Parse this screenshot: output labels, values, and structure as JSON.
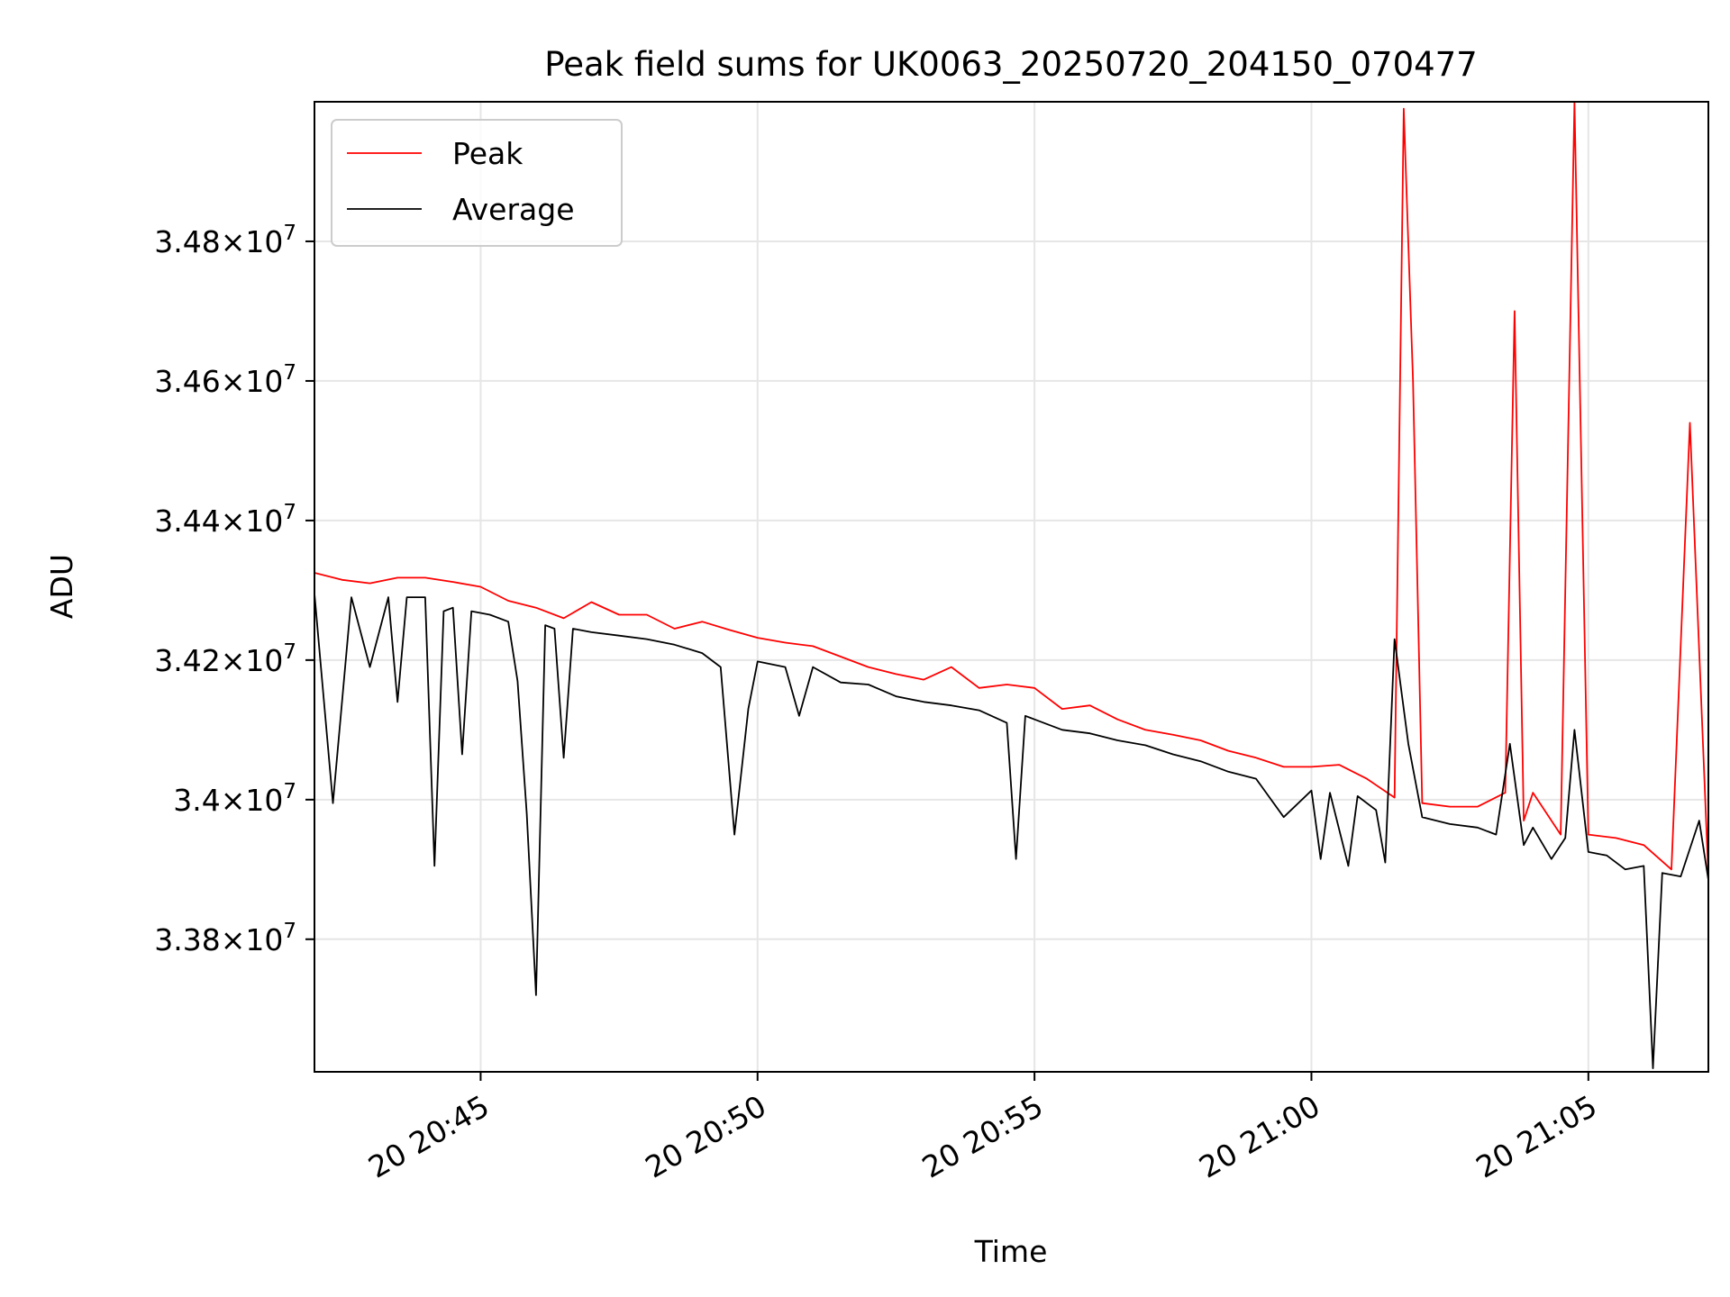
{
  "chart_data": {
    "type": "line",
    "title": "Peak field sums for UK0063_20250720_204150_070477",
    "xlabel": "Time",
    "ylabel": "ADU",
    "xlim": [
      "2025-07-20T20:42:00",
      "2025-07-20T21:07:10"
    ],
    "ylim": [
      33610000,
      35000000
    ],
    "x_ticks": [
      {
        "value": "2025-07-20T20:45:00",
        "label": "20 20:45"
      },
      {
        "value": "2025-07-20T20:50:00",
        "label": "20 20:50"
      },
      {
        "value": "2025-07-20T20:55:00",
        "label": "20 20:55"
      },
      {
        "value": "2025-07-20T21:00:00",
        "label": "20 21:00"
      },
      {
        "value": "2025-07-20T21:05:00",
        "label": "20 21:05"
      }
    ],
    "y_ticks": [
      {
        "value": 33800000,
        "label": "3.38",
        "exponent": "7"
      },
      {
        "value": 34000000,
        "label": "3.4",
        "exponent": "7"
      },
      {
        "value": 34200000,
        "label": "3.42",
        "exponent": "7"
      },
      {
        "value": 34400000,
        "label": "3.44",
        "exponent": "7"
      },
      {
        "value": 34600000,
        "label": "3.46",
        "exponent": "7"
      },
      {
        "value": 34800000,
        "label": "3.48",
        "exponent": "7"
      }
    ],
    "grid": true,
    "legend_position": "top-left",
    "series": [
      {
        "name": "Peak",
        "color": "#ff0000",
        "points": [
          [
            "2025-07-20T20:42:00",
            34325000
          ],
          [
            "2025-07-20T20:42:30",
            34315000
          ],
          [
            "2025-07-20T20:43:00",
            34310000
          ],
          [
            "2025-07-20T20:43:30",
            34318000
          ],
          [
            "2025-07-20T20:44:00",
            34318000
          ],
          [
            "2025-07-20T20:44:30",
            34312000
          ],
          [
            "2025-07-20T20:45:00",
            34305000
          ],
          [
            "2025-07-20T20:45:30",
            34285000
          ],
          [
            "2025-07-20T20:46:00",
            34275000
          ],
          [
            "2025-07-20T20:46:30",
            34260000
          ],
          [
            "2025-07-20T20:47:00",
            34283000
          ],
          [
            "2025-07-20T20:47:30",
            34265000
          ],
          [
            "2025-07-20T20:48:00",
            34265000
          ],
          [
            "2025-07-20T20:48:30",
            34245000
          ],
          [
            "2025-07-20T20:49:00",
            34255000
          ],
          [
            "2025-07-20T20:49:30",
            34243000
          ],
          [
            "2025-07-20T20:50:00",
            34232000
          ],
          [
            "2025-07-20T20:50:30",
            34225000
          ],
          [
            "2025-07-20T20:51:00",
            34220000
          ],
          [
            "2025-07-20T20:51:30",
            34205000
          ],
          [
            "2025-07-20T20:52:00",
            34190000
          ],
          [
            "2025-07-20T20:52:30",
            34180000
          ],
          [
            "2025-07-20T20:53:00",
            34172000
          ],
          [
            "2025-07-20T20:53:30",
            34190000
          ],
          [
            "2025-07-20T20:54:00",
            34160000
          ],
          [
            "2025-07-20T20:54:30",
            34165000
          ],
          [
            "2025-07-20T20:55:00",
            34160000
          ],
          [
            "2025-07-20T20:55:30",
            34130000
          ],
          [
            "2025-07-20T20:56:00",
            34135000
          ],
          [
            "2025-07-20T20:56:30",
            34115000
          ],
          [
            "2025-07-20T20:57:00",
            34100000
          ],
          [
            "2025-07-20T20:57:30",
            34093000
          ],
          [
            "2025-07-20T20:58:00",
            34085000
          ],
          [
            "2025-07-20T20:58:30",
            34070000
          ],
          [
            "2025-07-20T20:59:00",
            34060000
          ],
          [
            "2025-07-20T20:59:30",
            34047000
          ],
          [
            "2025-07-20T21:00:00",
            34047000
          ],
          [
            "2025-07-20T21:00:30",
            34050000
          ],
          [
            "2025-07-20T21:01:00",
            34030000
          ],
          [
            "2025-07-20T21:01:30",
            34003000
          ],
          [
            "2025-07-20T21:01:40",
            34990000
          ],
          [
            "2025-07-20T21:01:50",
            34600000
          ],
          [
            "2025-07-20T21:02:00",
            33995000
          ],
          [
            "2025-07-20T21:02:30",
            33990000
          ],
          [
            "2025-07-20T21:03:00",
            33990000
          ],
          [
            "2025-07-20T21:03:30",
            34010000
          ],
          [
            "2025-07-20T21:03:40",
            34700000
          ],
          [
            "2025-07-20T21:03:50",
            33970000
          ],
          [
            "2025-07-20T21:04:00",
            34010000
          ],
          [
            "2025-07-20T21:04:30",
            33950000
          ],
          [
            "2025-07-20T21:04:45",
            35000000
          ],
          [
            "2025-07-20T21:05:00",
            33950000
          ],
          [
            "2025-07-20T21:05:30",
            33945000
          ],
          [
            "2025-07-20T21:06:00",
            33935000
          ],
          [
            "2025-07-20T21:06:30",
            33900000
          ],
          [
            "2025-07-20T21:06:50",
            34540000
          ],
          [
            "2025-07-20T21:07:10",
            33890000
          ]
        ]
      },
      {
        "name": "Average",
        "color": "#000000",
        "points": [
          [
            "2025-07-20T20:42:00",
            34295000
          ],
          [
            "2025-07-20T20:42:20",
            33995000
          ],
          [
            "2025-07-20T20:42:40",
            34290000
          ],
          [
            "2025-07-20T20:43:00",
            34190000
          ],
          [
            "2025-07-20T20:43:20",
            34290000
          ],
          [
            "2025-07-20T20:43:30",
            34140000
          ],
          [
            "2025-07-20T20:43:40",
            34290000
          ],
          [
            "2025-07-20T20:44:00",
            34290000
          ],
          [
            "2025-07-20T20:44:10",
            33905000
          ],
          [
            "2025-07-20T20:44:20",
            34270000
          ],
          [
            "2025-07-20T20:44:30",
            34275000
          ],
          [
            "2025-07-20T20:44:40",
            34065000
          ],
          [
            "2025-07-20T20:44:50",
            34270000
          ],
          [
            "2025-07-20T20:45:10",
            34265000
          ],
          [
            "2025-07-20T20:45:30",
            34255000
          ],
          [
            "2025-07-20T20:45:40",
            34170000
          ],
          [
            "2025-07-20T20:45:50",
            33980000
          ],
          [
            "2025-07-20T20:46:00",
            33720000
          ],
          [
            "2025-07-20T20:46:10",
            34250000
          ],
          [
            "2025-07-20T20:46:20",
            34245000
          ],
          [
            "2025-07-20T20:46:30",
            34060000
          ],
          [
            "2025-07-20T20:46:40",
            34245000
          ],
          [
            "2025-07-20T20:47:00",
            34240000
          ],
          [
            "2025-07-20T20:47:30",
            34235000
          ],
          [
            "2025-07-20T20:48:00",
            34230000
          ],
          [
            "2025-07-20T20:48:30",
            34222000
          ],
          [
            "2025-07-20T20:49:00",
            34210000
          ],
          [
            "2025-07-20T20:49:20",
            34190000
          ],
          [
            "2025-07-20T20:49:35",
            33950000
          ],
          [
            "2025-07-20T20:49:50",
            34130000
          ],
          [
            "2025-07-20T20:50:00",
            34198000
          ],
          [
            "2025-07-20T20:50:30",
            34190000
          ],
          [
            "2025-07-20T20:50:45",
            34120000
          ],
          [
            "2025-07-20T20:51:00",
            34190000
          ],
          [
            "2025-07-20T20:51:30",
            34168000
          ],
          [
            "2025-07-20T20:52:00",
            34165000
          ],
          [
            "2025-07-20T20:52:30",
            34148000
          ],
          [
            "2025-07-20T20:53:00",
            34140000
          ],
          [
            "2025-07-20T20:53:30",
            34135000
          ],
          [
            "2025-07-20T20:54:00",
            34128000
          ],
          [
            "2025-07-20T20:54:30",
            34110000
          ],
          [
            "2025-07-20T20:54:40",
            33915000
          ],
          [
            "2025-07-20T20:54:50",
            34120000
          ],
          [
            "2025-07-20T20:55:00",
            34115000
          ],
          [
            "2025-07-20T20:55:30",
            34100000
          ],
          [
            "2025-07-20T20:56:00",
            34095000
          ],
          [
            "2025-07-20T20:56:30",
            34085000
          ],
          [
            "2025-07-20T20:57:00",
            34078000
          ],
          [
            "2025-07-20T20:57:30",
            34065000
          ],
          [
            "2025-07-20T20:58:00",
            34055000
          ],
          [
            "2025-07-20T20:58:30",
            34040000
          ],
          [
            "2025-07-20T20:59:00",
            34030000
          ],
          [
            "2025-07-20T20:59:30",
            33975000
          ],
          [
            "2025-07-20T21:00:00",
            34013000
          ],
          [
            "2025-07-20T21:00:10",
            33915000
          ],
          [
            "2025-07-20T21:00:20",
            34010000
          ],
          [
            "2025-07-20T21:00:40",
            33905000
          ],
          [
            "2025-07-20T21:00:50",
            34005000
          ],
          [
            "2025-07-20T21:01:10",
            33985000
          ],
          [
            "2025-07-20T21:01:20",
            33910000
          ],
          [
            "2025-07-20T21:01:30",
            34230000
          ],
          [
            "2025-07-20T21:01:45",
            34080000
          ],
          [
            "2025-07-20T21:02:00",
            33975000
          ],
          [
            "2025-07-20T21:02:30",
            33965000
          ],
          [
            "2025-07-20T21:03:00",
            33960000
          ],
          [
            "2025-07-20T21:03:20",
            33950000
          ],
          [
            "2025-07-20T21:03:35",
            34080000
          ],
          [
            "2025-07-20T21:03:50",
            33935000
          ],
          [
            "2025-07-20T21:04:00",
            33960000
          ],
          [
            "2025-07-20T21:04:20",
            33915000
          ],
          [
            "2025-07-20T21:04:35",
            33945000
          ],
          [
            "2025-07-20T21:04:45",
            34100000
          ],
          [
            "2025-07-20T21:05:00",
            33925000
          ],
          [
            "2025-07-20T21:05:20",
            33920000
          ],
          [
            "2025-07-20T21:05:40",
            33900000
          ],
          [
            "2025-07-20T21:06:00",
            33905000
          ],
          [
            "2025-07-20T21:06:10",
            33615000
          ],
          [
            "2025-07-20T21:06:20",
            33895000
          ],
          [
            "2025-07-20T21:06:40",
            33890000
          ],
          [
            "2025-07-20T21:07:00",
            33970000
          ],
          [
            "2025-07-20T21:07:10",
            33885000
          ]
        ]
      }
    ]
  }
}
